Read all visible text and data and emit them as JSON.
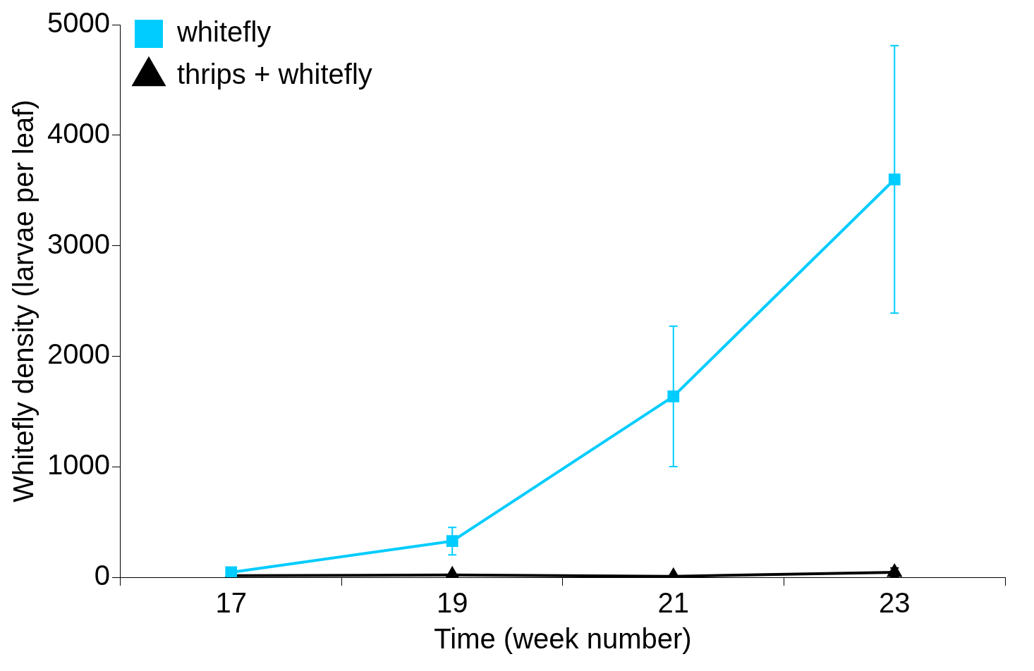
{
  "chart_data": {
    "type": "line",
    "xlabel": "Time (week number)",
    "ylabel": "Whitefly density (larvae per leaf)",
    "categories": [
      "17",
      "19",
      "21",
      "23"
    ],
    "series": [
      {
        "name": "whitefly",
        "color": "#00ccff",
        "marker": "square",
        "values": [
          45,
          327,
          1637,
          3600
        ],
        "errors": [
          null,
          125,
          635,
          1210
        ]
      },
      {
        "name": "thrips + whitefly",
        "color": "#000000",
        "marker": "triangle",
        "values": [
          15,
          20,
          8,
          45
        ],
        "errors": [
          null,
          null,
          null,
          40
        ]
      }
    ],
    "ylim": [
      0,
      5000
    ],
    "yticks": [
      0,
      1000,
      2000,
      3000,
      4000,
      5000
    ],
    "grid": false,
    "legend": "top left"
  }
}
